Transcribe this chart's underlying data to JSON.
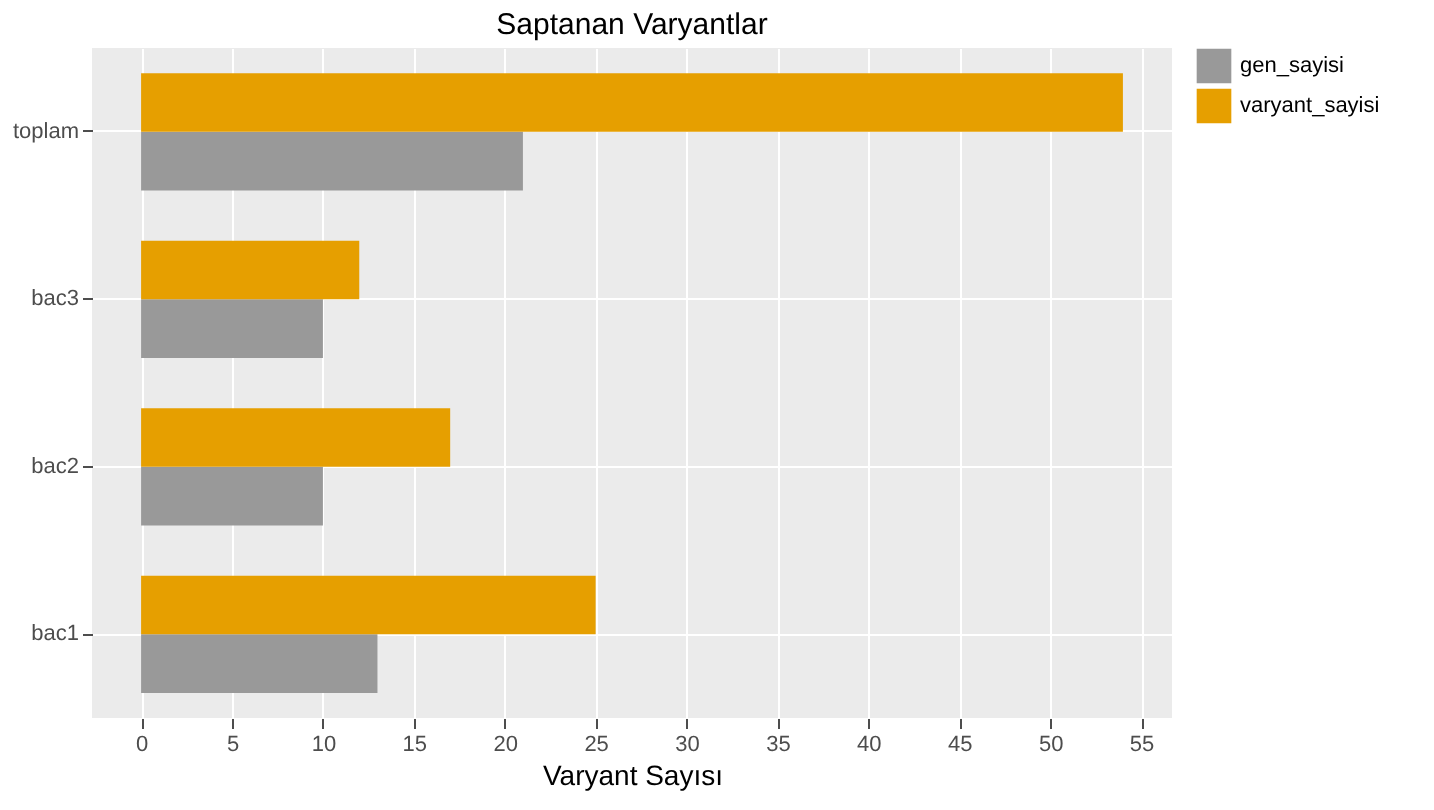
{
  "chart_data": {
    "type": "bar",
    "orientation": "horizontal",
    "title": "Saptanan Varyantlar",
    "xlabel": "Varyant Sayısı",
    "categories": [
      "toplam",
      "bac3",
      "bac2",
      "bac1"
    ],
    "series": [
      {
        "name": "gen_sayisi",
        "color": "#999999",
        "values": [
          21,
          10,
          10,
          13
        ]
      },
      {
        "name": "varyant_sayisi",
        "color": "#e69f00",
        "values": [
          54,
          12,
          17,
          25
        ]
      }
    ],
    "xlim": [
      -2.7,
      56.7
    ],
    "xticks": [
      0,
      5,
      10,
      15,
      20,
      25,
      30,
      35,
      40,
      45,
      50,
      55
    ],
    "grid": true,
    "legend": "right"
  }
}
